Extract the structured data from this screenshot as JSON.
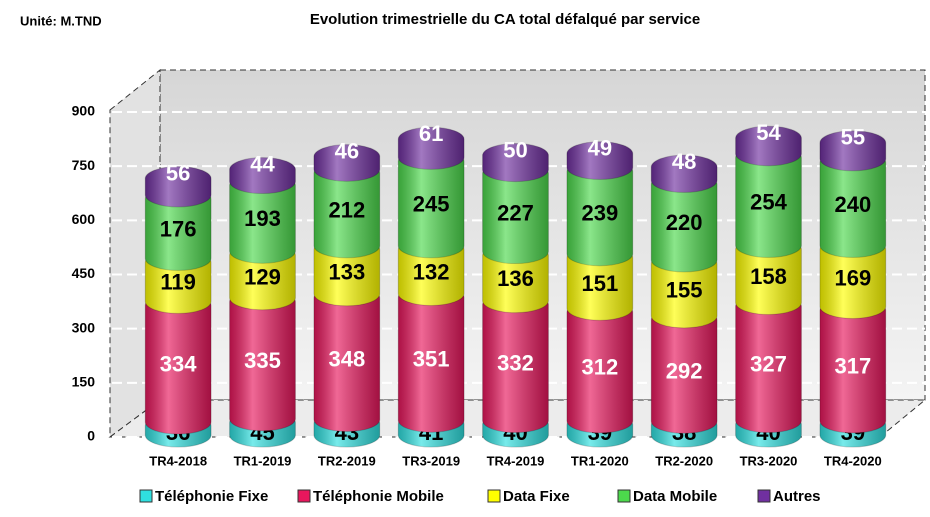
{
  "chart_data": {
    "type": "bar",
    "stacked": true,
    "title": "Evolution trimestrielle du CA total défalqué par service",
    "unit": "Unité: M.TND",
    "categories": [
      "TR4-2018",
      "TR1-2019",
      "TR2-2019",
      "TR3-2019",
      "TR4-2019",
      "TR1-2020",
      "TR2-2020",
      "TR3-2020",
      "TR4-2020"
    ],
    "series": [
      {
        "name": "Téléphonie Fixe",
        "color": "#2fe0e0",
        "values": [
          36,
          45,
          43,
          41,
          40,
          39,
          38,
          40,
          39
        ]
      },
      {
        "name": "Téléphonie Mobile",
        "color": "#e8175d",
        "values": [
          334,
          335,
          348,
          351,
          332,
          312,
          292,
          327,
          317
        ]
      },
      {
        "name": "Data Fixe",
        "color": "#ffff00",
        "values": [
          119,
          129,
          133,
          132,
          136,
          151,
          155,
          158,
          169
        ]
      },
      {
        "name": "Data Mobile",
        "color": "#4cd94c",
        "values": [
          176,
          193,
          212,
          245,
          227,
          239,
          220,
          254,
          240
        ]
      },
      {
        "name": "Autres",
        "color": "#7030a0",
        "values": [
          56,
          44,
          46,
          61,
          50,
          49,
          48,
          54,
          55
        ]
      }
    ],
    "ylim": [
      0,
      900
    ],
    "yticks": [
      0,
      150,
      300,
      450,
      600,
      750,
      900
    ],
    "grid": true,
    "legend": "bottom"
  }
}
